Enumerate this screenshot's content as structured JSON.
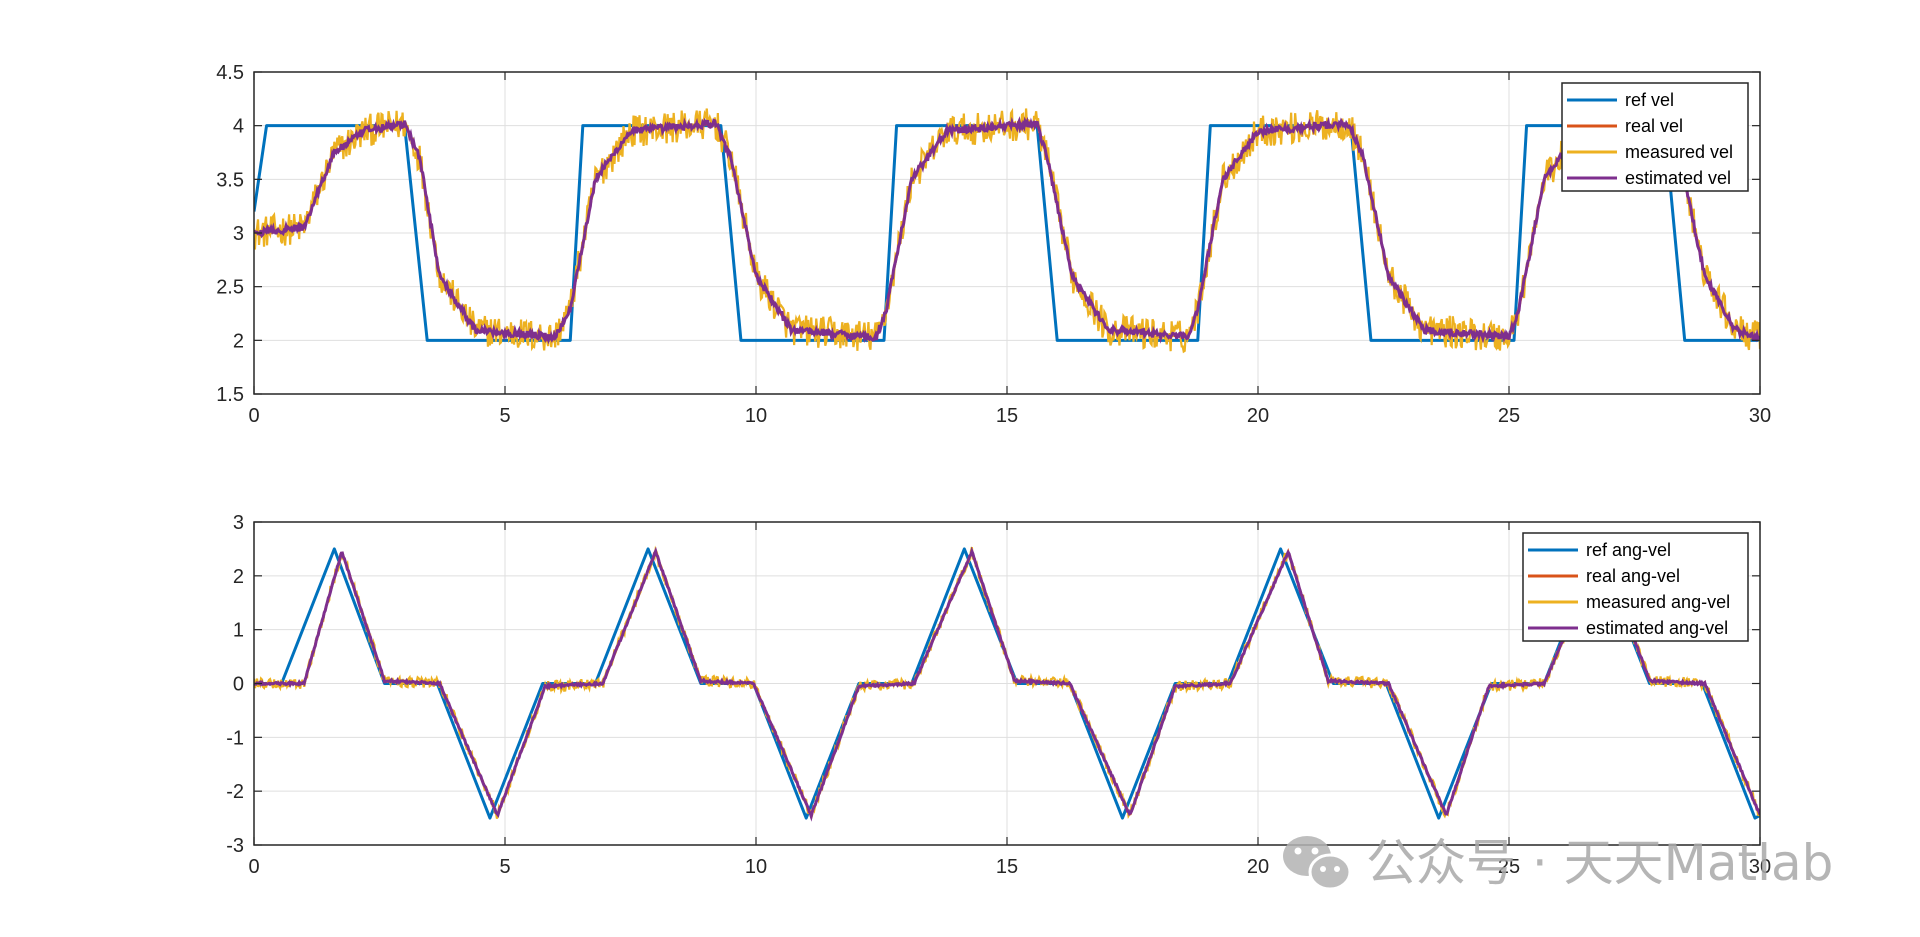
{
  "chart_data": [
    {
      "type": "line",
      "xlim": [
        0,
        30
      ],
      "ylim": [
        1.5,
        4.5
      ],
      "x_ticks": [
        0,
        5,
        10,
        15,
        20,
        25,
        30
      ],
      "x_tick_labels": [
        "0",
        "5",
        "10",
        "15",
        "20",
        "25",
        "30"
      ],
      "y_ticks": [
        1.5,
        2,
        2.5,
        3,
        3.5,
        4,
        4.5
      ],
      "y_tick_labels": [
        "1.5",
        "2",
        "2.5",
        "3",
        "3.5",
        "4",
        "4.5"
      ],
      "grid": true,
      "legend_position": "top-right",
      "legend": [
        "ref vel",
        "real vel",
        "measured vel",
        "estimated vel"
      ],
      "series": [
        {
          "name": "ref vel",
          "color": "#0072BD",
          "x": [
            0,
            0.25,
            3.0,
            3.45,
            6.3,
            6.55,
            9.3,
            9.7,
            12.55,
            12.8,
            15.6,
            16.0,
            18.8,
            19.05,
            21.85,
            22.25,
            25.1,
            25.35,
            28.1,
            28.5,
            30
          ],
          "y": [
            3.2,
            4,
            4,
            2,
            2,
            4,
            4,
            2,
            2,
            4,
            4,
            2,
            2,
            4,
            4,
            2,
            2,
            4,
            4,
            2,
            2
          ]
        },
        {
          "name": "real vel",
          "color": "#D95319",
          "x": [
            0,
            1.0,
            1.2,
            1.6,
            2.2,
            3.0,
            3.3,
            3.7,
            4.4,
            6.0,
            6.3,
            6.8,
            7.5,
            9.2,
            9.5,
            10.0,
            10.7,
            12.4,
            12.6,
            13.1,
            13.8,
            15.6,
            15.8,
            16.3,
            17.0,
            18.6,
            18.8,
            19.3,
            20.0,
            21.8,
            22.1,
            22.6,
            23.3,
            25.0,
            25.2,
            25.7,
            26.4,
            28.1,
            28.4,
            28.9,
            29.5,
            30
          ],
          "y": [
            3.0,
            3.05,
            3.3,
            3.75,
            3.95,
            4.02,
            3.7,
            2.6,
            2.1,
            2.03,
            2.3,
            3.5,
            3.95,
            4.02,
            3.7,
            2.6,
            2.1,
            2.03,
            2.3,
            3.5,
            3.95,
            4.02,
            3.7,
            2.6,
            2.1,
            2.03,
            2.3,
            3.5,
            3.95,
            4.02,
            3.7,
            2.6,
            2.1,
            2.03,
            2.3,
            3.5,
            3.95,
            4.02,
            3.7,
            2.6,
            2.1,
            2.02
          ]
        },
        {
          "name": "measured vel",
          "color": "#EDB120",
          "noise_amplitude": 0.15
        },
        {
          "name": "estimated vel",
          "color": "#7E2F8E"
        }
      ]
    },
    {
      "type": "line",
      "xlim": [
        0,
        30
      ],
      "ylim": [
        -3,
        3
      ],
      "x_ticks": [
        0,
        5,
        10,
        15,
        20,
        25,
        30
      ],
      "x_tick_labels": [
        "0",
        "5",
        "10",
        "15",
        "20",
        "25",
        "30"
      ],
      "y_ticks": [
        -3,
        -2,
        -1,
        0,
        1,
        2,
        3
      ],
      "y_tick_labels": [
        "-3",
        "-2",
        "-1",
        "0",
        "1",
        "2",
        "3"
      ],
      "grid": true,
      "legend_position": "top-right",
      "legend": [
        "ref ang-vel",
        "real ang-vel",
        "measured ang-vel",
        "estimated ang-vel"
      ],
      "series": [
        {
          "name": "ref ang-vel",
          "color": "#0072BD",
          "x": [
            0,
            0.55,
            1.6,
            2.6,
            3.65,
            4.7,
            5.75,
            6.8,
            7.85,
            8.9,
            9.95,
            11.0,
            12.05,
            13.1,
            14.15,
            15.2,
            16.25,
            17.3,
            18.35,
            19.4,
            20.45,
            21.5,
            22.55,
            23.6,
            24.65,
            25.7,
            26.75,
            27.8,
            28.85,
            29.9,
            30
          ],
          "y": [
            0,
            0,
            2.5,
            0,
            0,
            -2.5,
            0,
            0,
            2.5,
            0,
            0,
            -2.5,
            0,
            0,
            2.5,
            0,
            0,
            -2.5,
            0,
            0,
            2.5,
            0,
            0,
            -2.5,
            0,
            0,
            2.5,
            0,
            0,
            -2.5,
            -2.45
          ]
        },
        {
          "name": "real ang-vel",
          "color": "#D95319",
          "x": [
            0,
            1.0,
            1.75,
            2.6,
            3.7,
            4.85,
            5.8,
            6.95,
            8.0,
            8.9,
            9.95,
            11.1,
            12.05,
            13.15,
            14.3,
            15.15,
            16.25,
            17.45,
            18.35,
            19.45,
            20.6,
            21.4,
            22.6,
            23.75,
            24.6,
            25.7,
            26.85,
            27.8,
            28.9,
            30
          ],
          "y": [
            0,
            0,
            2.45,
            0.05,
            0,
            -2.45,
            -0.05,
            0,
            2.45,
            0.05,
            0,
            -2.45,
            -0.05,
            0,
            2.45,
            0.05,
            0,
            -2.45,
            -0.05,
            0,
            2.45,
            0.05,
            0,
            -2.45,
            -0.05,
            0,
            2.45,
            0.05,
            0,
            -2.45
          ]
        },
        {
          "name": "measured ang-vel",
          "color": "#EDB120",
          "noise_amplitude": 0.1
        },
        {
          "name": "estimated ang-vel",
          "color": "#7E2F8E"
        }
      ]
    }
  ],
  "watermark": {
    "text": "公众号 · 天天Matlab",
    "icon": "wechat-icon",
    "color": "#a9a9a9"
  }
}
